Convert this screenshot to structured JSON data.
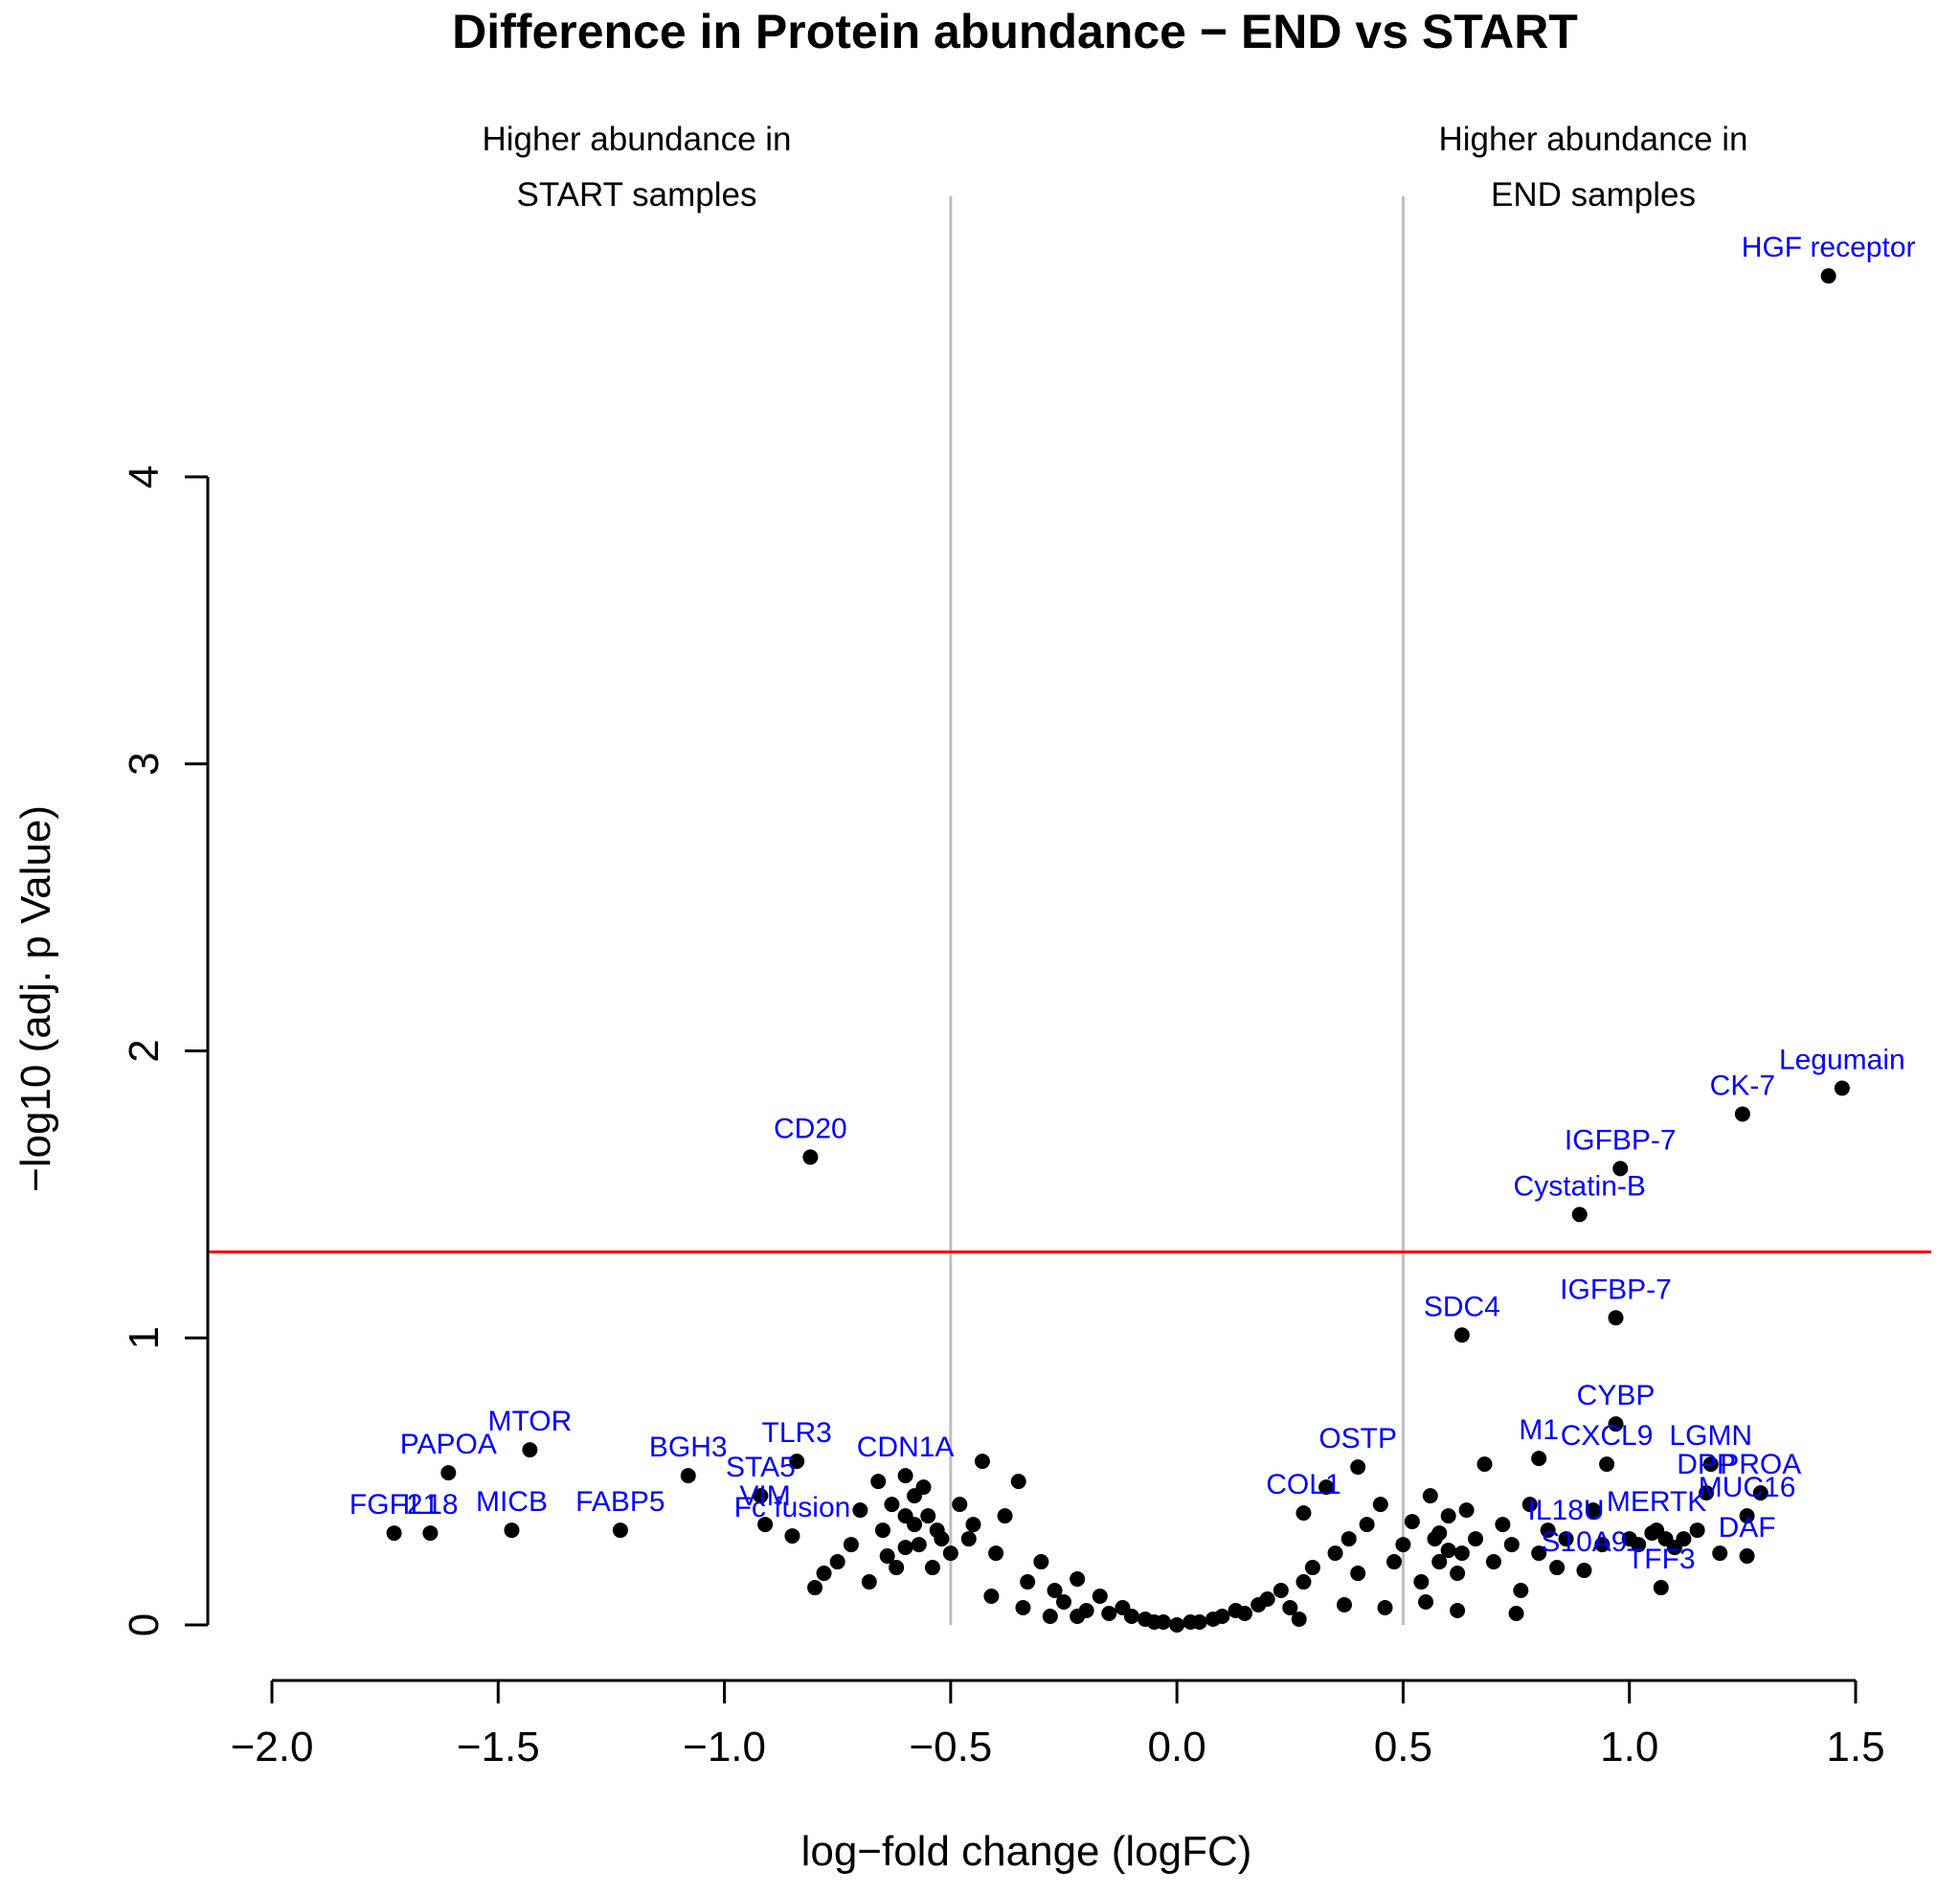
{
  "chart_data": {
    "type": "scatter",
    "title": "Difference in Protein abundance − END vs START",
    "xlabel": "log−fold change (logFC)",
    "ylabel": "−log10 (adj. p Value)",
    "xlim": [
      -2.0,
      1.5
    ],
    "ylim": [
      0,
      4
    ],
    "x_ticks": [
      "−2.0",
      "−1.5",
      "−1.0",
      "−0.5",
      "0.0",
      "0.5",
      "1.0",
      "1.5"
    ],
    "x_tick_values": [
      -2.0,
      -1.5,
      -1.0,
      -0.5,
      0.0,
      0.5,
      1.0,
      1.5
    ],
    "y_ticks": [
      "0",
      "1",
      "2",
      "3",
      "4"
    ],
    "y_tick_values": [
      0,
      1,
      2,
      3,
      4
    ],
    "grid": false,
    "colors": {
      "points": "#000000",
      "labels": "#0000ff",
      "threshold": "#ff0000",
      "fc_lines": "#bebebe"
    },
    "reference_lines": {
      "vertical_logfc": [
        -0.5,
        0.5
      ],
      "horizontal_neglog10p": 1.3
    },
    "region_labels": [
      {
        "lines": [
          "Higher abundance in",
          "START samples"
        ],
        "side": "left"
      },
      {
        "lines": [
          "Higher abundance in",
          "END samples"
        ],
        "side": "right"
      }
    ],
    "labeled_points": [
      {
        "label": "HGF receptor",
        "x": 1.44,
        "y": 4.7
      },
      {
        "label": "Legumain",
        "x": 1.47,
        "y": 1.87
      },
      {
        "label": "CK-7",
        "x": 1.25,
        "y": 1.78
      },
      {
        "label": "IGFBP-7",
        "x": 0.98,
        "y": 1.59
      },
      {
        "label": "Cystatin-B",
        "x": 0.89,
        "y": 1.43
      },
      {
        "label": "CD20",
        "x": -0.81,
        "y": 1.63
      },
      {
        "label": "SDC4",
        "x": 0.63,
        "y": 1.01
      },
      {
        "label": "IGFBP-7",
        "x": 0.97,
        "y": 1.07
      },
      {
        "label": "CYBP",
        "x": 0.97,
        "y": 0.7
      },
      {
        "label": "CXCL9",
        "x": 0.95,
        "y": 0.56
      },
      {
        "label": "LGMN",
        "x": 1.18,
        "y": 0.56
      },
      {
        "label": "DPP",
        "x": 1.17,
        "y": 0.46
      },
      {
        "label": "PROA",
        "x": 1.29,
        "y": 0.46
      },
      {
        "label": "MUC16",
        "x": 1.26,
        "y": 0.38
      },
      {
        "label": "DAF",
        "x": 1.26,
        "y": 0.24
      },
      {
        "label": "TFF3",
        "x": 1.07,
        "y": 0.13
      },
      {
        "label": "MTOR",
        "x": -1.43,
        "y": 0.61
      },
      {
        "label": "PAPOA",
        "x": -1.61,
        "y": 0.53
      },
      {
        "label": "FGF21",
        "x": -1.73,
        "y": 0.32
      },
      {
        "label": "IL18",
        "x": -1.65,
        "y": 0.32
      },
      {
        "label": "MICB",
        "x": -1.47,
        "y": 0.33
      },
      {
        "label": "FABP5",
        "x": -1.23,
        "y": 0.33
      },
      {
        "label": "BGH3",
        "x": -1.08,
        "y": 0.52
      },
      {
        "label": "TLR3",
        "x": -0.84,
        "y": 0.57
      },
      {
        "label": "CDN1A",
        "x": -0.6,
        "y": 0.52
      },
      {
        "label": "STA5",
        "x": -0.92,
        "y": 0.45
      },
      {
        "label": "VIM",
        "x": -0.91,
        "y": 0.35
      },
      {
        "label": "Fc fusion",
        "x": -0.85,
        "y": 0.31
      },
      {
        "label": "OSTP",
        "x": 0.4,
        "y": 0.55
      },
      {
        "label": "M1",
        "x": 0.8,
        "y": 0.58
      },
      {
        "label": "COL1",
        "x": 0.28,
        "y": 0.39
      },
      {
        "label": "MERTK",
        "x": 1.06,
        "y": 0.33
      },
      {
        "label": "S10A9",
        "x": 0.9,
        "y": 0.19
      },
      {
        "label": "IL18U",
        "x": 0.86,
        "y": 0.3
      }
    ],
    "unlabeled_points": [
      [
        -0.58,
        0.45
      ],
      [
        -0.55,
        0.38
      ],
      [
        -0.52,
        0.3
      ],
      [
        -0.6,
        0.27
      ],
      [
        -0.65,
        0.33
      ],
      [
        -0.7,
        0.4
      ],
      [
        -0.75,
        0.22
      ],
      [
        -0.62,
        0.2
      ],
      [
        -0.56,
        0.48
      ],
      [
        -0.48,
        0.42
      ],
      [
        -0.45,
        0.35
      ],
      [
        -0.5,
        0.25
      ],
      [
        -0.68,
        0.15
      ],
      [
        -0.72,
        0.28
      ],
      [
        -0.78,
        0.18
      ],
      [
        -0.8,
        0.13
      ],
      [
        -0.66,
        0.5
      ],
      [
        -0.63,
        0.42
      ],
      [
        -0.58,
        0.35
      ],
      [
        -0.54,
        0.2
      ],
      [
        -0.46,
        0.3
      ],
      [
        -0.43,
        0.57
      ],
      [
        -0.4,
        0.25
      ],
      [
        -0.38,
        0.38
      ],
      [
        -0.35,
        0.5
      ],
      [
        -0.33,
        0.15
      ],
      [
        -0.3,
        0.22
      ],
      [
        -0.27,
        0.12
      ],
      [
        -0.25,
        0.08
      ],
      [
        -0.22,
        0.16
      ],
      [
        -0.2,
        0.05
      ],
      [
        -0.17,
        0.1
      ],
      [
        -0.15,
        0.04
      ],
      [
        -0.12,
        0.06
      ],
      [
        -0.1,
        0.03
      ],
      [
        -0.07,
        0.02
      ],
      [
        -0.05,
        0.01
      ],
      [
        -0.03,
        0.01
      ],
      [
        0.0,
        0.0
      ],
      [
        0.03,
        0.01
      ],
      [
        0.05,
        0.01
      ],
      [
        0.08,
        0.02
      ],
      [
        0.1,
        0.03
      ],
      [
        0.13,
        0.05
      ],
      [
        0.15,
        0.04
      ],
      [
        0.18,
        0.07
      ],
      [
        0.2,
        0.09
      ],
      [
        0.23,
        0.12
      ],
      [
        0.25,
        0.06
      ],
      [
        0.28,
        0.15
      ],
      [
        0.3,
        0.2
      ],
      [
        0.33,
        0.48
      ],
      [
        0.35,
        0.25
      ],
      [
        0.38,
        0.3
      ],
      [
        0.4,
        0.18
      ],
      [
        0.42,
        0.35
      ],
      [
        0.45,
        0.42
      ],
      [
        0.48,
        0.22
      ],
      [
        0.5,
        0.28
      ],
      [
        0.52,
        0.36
      ],
      [
        0.54,
        0.15
      ],
      [
        0.56,
        0.45
      ],
      [
        0.58,
        0.32
      ],
      [
        0.6,
        0.26
      ],
      [
        0.62,
        0.18
      ],
      [
        0.64,
        0.4
      ],
      [
        0.66,
        0.3
      ],
      [
        0.68,
        0.56
      ],
      [
        0.7,
        0.22
      ],
      [
        0.72,
        0.35
      ],
      [
        0.74,
        0.28
      ],
      [
        0.76,
        0.12
      ],
      [
        0.78,
        0.42
      ],
      [
        0.8,
        0.25
      ],
      [
        0.82,
        0.33
      ],
      [
        0.84,
        0.2
      ],
      [
        0.75,
        0.04
      ],
      [
        0.62,
        0.05
      ],
      [
        0.55,
        0.08
      ],
      [
        0.46,
        0.06
      ],
      [
        0.92,
        0.4
      ],
      [
        0.94,
        0.28
      ],
      [
        1.0,
        0.3
      ],
      [
        1.02,
        0.28
      ],
      [
        1.05,
        0.32
      ],
      [
        1.08,
        0.3
      ],
      [
        1.1,
        0.27
      ],
      [
        1.12,
        0.3
      ],
      [
        1.15,
        0.33
      ],
      [
        1.2,
        0.25
      ],
      [
        -0.34,
        0.06
      ],
      [
        -0.28,
        0.03
      ],
      [
        -0.41,
        0.1
      ],
      [
        0.37,
        0.07
      ],
      [
        0.27,
        0.02
      ],
      [
        -0.22,
        0.03
      ],
      [
        -0.6,
        0.38
      ],
      [
        -0.57,
        0.28
      ],
      [
        -0.64,
        0.24
      ],
      [
        -0.53,
        0.33
      ],
      [
        0.58,
        0.22
      ],
      [
        0.6,
        0.38
      ],
      [
        0.57,
        0.3
      ],
      [
        0.63,
        0.25
      ]
    ]
  }
}
